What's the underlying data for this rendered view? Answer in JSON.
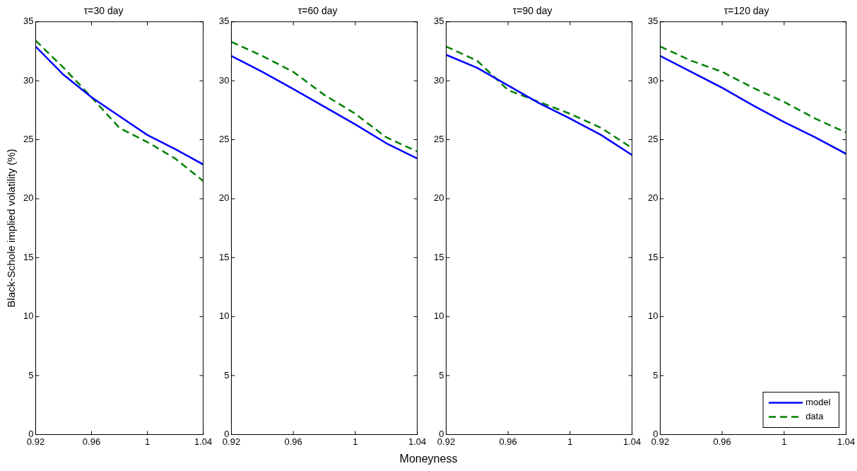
{
  "chart_data": [
    {
      "type": "line",
      "title": "τ=30 day",
      "ylabel": "Black-Schole implied volatility (%)",
      "x": [
        0.92,
        0.94,
        0.96,
        0.98,
        1.0,
        1.02,
        1.04
      ],
      "xlim": [
        0.92,
        1.04
      ],
      "xticks": [
        0.92,
        0.96,
        1,
        1.04
      ],
      "ylim": [
        0,
        35
      ],
      "yticks": [
        0,
        5,
        10,
        15,
        20,
        25,
        30,
        35
      ],
      "grid": false,
      "marker": "none",
      "series": [
        {
          "color": "#0000ff",
          "line_style": "solid",
          "values": [
            32.9,
            30.5,
            28.6,
            27.0,
            25.4,
            24.2,
            22.9
          ]
        },
        {
          "color": "#008000",
          "line_style": "dashed",
          "values": [
            33.4,
            31.1,
            28.6,
            26.0,
            24.8,
            23.4,
            21.5
          ]
        }
      ]
    },
    {
      "type": "line",
      "title": "τ=60 day",
      "xlabel": "Moneyness",
      "x": [
        0.92,
        0.94,
        0.96,
        0.98,
        1.0,
        1.02,
        1.04
      ],
      "xlim": [
        0.92,
        1.04
      ],
      "xticks": [
        0.92,
        0.96,
        1,
        1.04
      ],
      "ylim": [
        0,
        35
      ],
      "yticks": [
        0,
        5,
        10,
        15,
        20,
        25,
        30,
        35
      ],
      "grid": false,
      "marker": "none",
      "series": [
        {
          "color": "#0000ff",
          "line_style": "solid",
          "values": [
            32.1,
            30.75,
            29.3,
            27.8,
            26.3,
            24.7,
            23.4
          ]
        },
        {
          "color": "#008000",
          "line_style": "dashed",
          "values": [
            33.3,
            32.1,
            30.75,
            28.8,
            27.2,
            25.2,
            24.0
          ]
        }
      ]
    },
    {
      "type": "line",
      "title": "τ=90 day",
      "x": [
        0.92,
        0.94,
        0.96,
        0.98,
        1.0,
        1.02,
        1.04
      ],
      "xlim": [
        0.92,
        1.04
      ],
      "xticks": [
        0.92,
        0.96,
        1,
        1.04
      ],
      "ylim": [
        0,
        35
      ],
      "yticks": [
        0,
        5,
        10,
        15,
        20,
        25,
        30,
        35
      ],
      "grid": false,
      "marker": "none",
      "series": [
        {
          "color": "#0000ff",
          "line_style": "solid",
          "values": [
            32.2,
            31.1,
            29.6,
            28.1,
            26.8,
            25.4,
            23.7
          ]
        },
        {
          "color": "#008000",
          "line_style": "dashed",
          "values": [
            32.9,
            31.7,
            29.2,
            28.2,
            27.2,
            26.0,
            24.3
          ]
        }
      ]
    },
    {
      "type": "line",
      "title": "τ=120 day",
      "x": [
        0.92,
        0.94,
        0.96,
        0.98,
        1.0,
        1.02,
        1.04
      ],
      "xlim": [
        0.92,
        1.04
      ],
      "xticks": [
        0.92,
        0.96,
        1,
        1.04
      ],
      "ylim": [
        0,
        35
      ],
      "yticks": [
        0,
        5,
        10,
        15,
        20,
        25,
        30,
        35
      ],
      "grid": false,
      "marker": "none",
      "legend": "bottom right",
      "series": [
        {
          "name": "model",
          "color": "#0000ff",
          "line_style": "solid",
          "values": [
            32.1,
            30.75,
            29.4,
            27.9,
            26.5,
            25.2,
            23.8
          ]
        },
        {
          "name": "data",
          "color": "#008000",
          "line_style": "dashed",
          "values": [
            32.9,
            31.7,
            30.75,
            29.4,
            28.2,
            26.8,
            25.6
          ]
        }
      ]
    }
  ]
}
